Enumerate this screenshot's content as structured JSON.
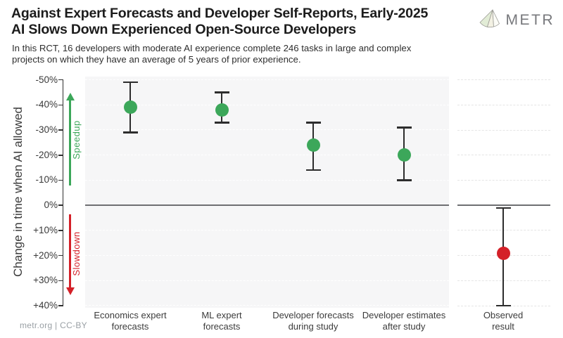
{
  "header": {
    "title_line1": "Against Expert Forecasts and Developer Self-Reports, Early-2025",
    "title_line2": "AI Slows Down Experienced Open-Source Developers",
    "subtitle_line1": "In this RCT, 16 developers with moderate AI experience complete 246 tasks in large and complex",
    "subtitle_line2": "projects on which they have an average of 5 years of prior experience.",
    "logo_text": "METR"
  },
  "footer": {
    "credit": "metr.org | CC-BY"
  },
  "chart_data": {
    "type": "scatter",
    "title": "Against Expert Forecasts and Developer Self-Reports, Early-2025 AI Slows Down Experienced Open-Source Developers",
    "ylabel": "Change in time when AI allowed",
    "ylim": [
      -50,
      40
    ],
    "y_axis_inverted": true,
    "grid": true,
    "yticks": [
      {
        "value": -50,
        "label": "-50%"
      },
      {
        "value": -40,
        "label": "-40%"
      },
      {
        "value": -30,
        "label": "-30%"
      },
      {
        "value": -20,
        "label": "-20%"
      },
      {
        "value": -10,
        "label": "-10%"
      },
      {
        "value": 0,
        "label": "0%"
      },
      {
        "value": 10,
        "label": "+10%"
      },
      {
        "value": 20,
        "label": "+20%"
      },
      {
        "value": 30,
        "label": "+30%"
      },
      {
        "value": 40,
        "label": "+40%"
      }
    ],
    "annotations": {
      "speedup_label": "Speedup",
      "slowdown_label": "Slowdown"
    },
    "categories": [
      "Economics expert forecasts",
      "ML expert forecasts",
      "Developer forecasts during study",
      "Developer estimates after study",
      "Observed result"
    ],
    "points": [
      {
        "label_line1": "Economics expert",
        "label_line2": "forecasts",
        "value": -39,
        "ci_min": -49,
        "ci_max": -29,
        "color": "green",
        "panel": "main"
      },
      {
        "label_line1": "ML expert",
        "label_line2": "forecasts",
        "value": -38,
        "ci_min": -45,
        "ci_max": -33,
        "color": "green",
        "panel": "main"
      },
      {
        "label_line1": "Developer forecasts",
        "label_line2": "during study",
        "value": -24,
        "ci_min": -33,
        "ci_max": -14,
        "color": "green",
        "panel": "main"
      },
      {
        "label_line1": "Developer estimates",
        "label_line2": "after study",
        "value": -20,
        "ci_min": -31,
        "ci_max": -10,
        "color": "green",
        "panel": "main"
      },
      {
        "label_line1": "Observed",
        "label_line2": "result",
        "value": 19,
        "ci_min": 1,
        "ci_max": 40,
        "color": "red",
        "panel": "observed"
      }
    ],
    "colors": {
      "speedup_green": "#3ca75a",
      "slowdown_red": "#d42028",
      "errorbar": "#2d2d2d",
      "zero_line": "#6e6f72",
      "panel_bg": "#f6f6f7"
    }
  }
}
